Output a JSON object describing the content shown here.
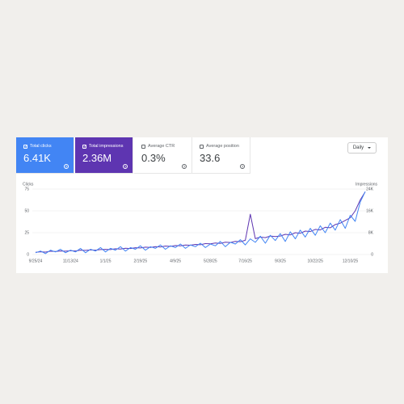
{
  "metrics": [
    {
      "label": "Total clicks",
      "value": "6.41K"
    },
    {
      "label": "Total impressions",
      "value": "2.36M"
    },
    {
      "label": "Average CTR",
      "value": "0.3%"
    },
    {
      "label": "Average position",
      "value": "33.6"
    }
  ],
  "granularity": "Daily",
  "chart_data": {
    "type": "line",
    "ylabel": "Clicks",
    "y2label": "Impressions",
    "categories": [
      "9/25/24",
      null,
      null,
      null,
      null,
      null,
      null,
      "11/13/24",
      null,
      null,
      null,
      null,
      null,
      null,
      "1/1/25",
      null,
      null,
      null,
      null,
      null,
      null,
      "2/19/25",
      null,
      null,
      null,
      null,
      null,
      null,
      "4/9/25",
      null,
      null,
      null,
      null,
      null,
      null,
      "5/28/25",
      null,
      null,
      null,
      null,
      null,
      null,
      "7/16/25",
      null,
      null,
      null,
      null,
      null,
      null,
      "9/3/25",
      null,
      null,
      null,
      null,
      null,
      null,
      "10/22/25",
      null,
      null,
      null,
      null,
      null,
      null,
      "12/10/25",
      null,
      null,
      null
    ],
    "series": [
      {
        "name": "Clicks",
        "color": "#4285f4",
        "values": [
          2,
          4,
          1,
          5,
          3,
          6,
          2,
          5,
          3,
          7,
          2,
          6,
          4,
          8,
          3,
          7,
          5,
          9,
          4,
          8,
          6,
          10,
          5,
          9,
          7,
          11,
          6,
          10,
          8,
          12,
          7,
          11,
          9,
          13,
          8,
          12,
          10,
          15,
          9,
          14,
          12,
          17,
          11,
          18,
          14,
          21,
          13,
          22,
          16,
          24,
          15,
          26,
          18,
          28,
          20,
          30,
          22,
          33,
          25,
          36,
          28,
          40,
          30,
          45,
          38,
          60,
          72
        ]
      },
      {
        "name": "Impressions",
        "color": "#5e35b1",
        "axis": "y2",
        "values": [
          800,
          1000,
          900,
          1200,
          1100,
          1300,
          1200,
          1400,
          1300,
          1600,
          1500,
          1700,
          1600,
          1800,
          1900,
          1800,
          2100,
          2000,
          2300,
          2200,
          2500,
          2400,
          2700,
          2600,
          2900,
          2800,
          3100,
          3000,
          3300,
          3200,
          3500,
          3400,
          3700,
          3600,
          4000,
          3900,
          4200,
          4100,
          4500,
          4400,
          4800,
          4700,
          5200,
          14800,
          5800,
          6400,
          6200,
          6800,
          6600,
          6800,
          7400,
          7200,
          8000,
          7800,
          8600,
          8400,
          9200,
          9000,
          10000,
          9800,
          11000,
          11500,
          12500,
          13500,
          16000,
          20000,
          23000
        ]
      }
    ],
    "ylim": [
      0,
      75
    ],
    "yticks": [
      0,
      25,
      50,
      75
    ],
    "y2lim": [
      0,
      24000
    ],
    "y2ticks": [
      0,
      {
        "value": 8000,
        "label": "8K"
      },
      {
        "value": 16000,
        "label": "16K"
      },
      {
        "value": 24000,
        "label": "24K"
      }
    ],
    "grid": true
  }
}
